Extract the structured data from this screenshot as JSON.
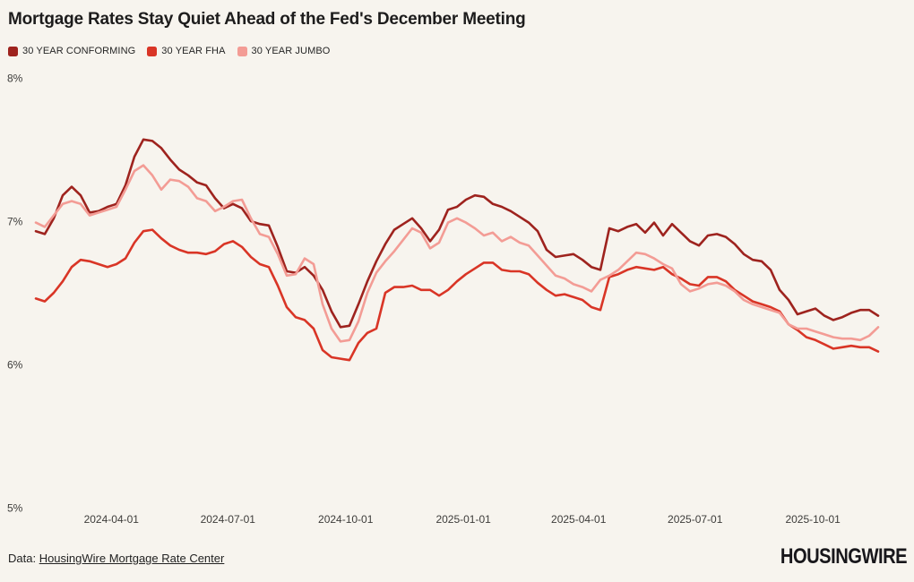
{
  "chart": {
    "title": "Mortgage Rates Stay Quiet Ahead of the Fed's December Meeting"
  },
  "footer": {
    "prefix": "Data: ",
    "link_text": "HousingWire Mortgage Rate Center"
  },
  "logo_text": "HOUSINGWIRE",
  "colors": {
    "background": "#f7f4ee",
    "conforming": "#9e231e",
    "fha": "#d93526",
    "jumbo": "#f39c95",
    "text": "#1d1c1c",
    "tick": "#3d3c3a"
  },
  "chart_data": {
    "type": "line",
    "title": "Mortgage Rates Stay Quiet Ahead of the Fed's December Meeting",
    "x_unit": "weekly dates",
    "start_date": "2024-02-02",
    "interval_days": 7,
    "x_tick_labels": [
      "2024-04-01",
      "2024-07-01",
      "2024-10-01",
      "2025-01-01",
      "2025-04-01",
      "2025-07-01",
      "2025-10-01"
    ],
    "y_ticks": [
      {
        "label": "8%",
        "value": 8
      },
      {
        "label": "7%",
        "value": 7
      },
      {
        "label": "6%",
        "value": 6
      },
      {
        "label": "5%",
        "value": 5
      }
    ],
    "ylim": [
      5,
      8
    ],
    "grid": false,
    "legend_position": "top-left",
    "series": [
      {
        "name": "30 YEAR CONFORMING",
        "color": "#9e231e",
        "values": [
          6.93,
          6.91,
          7.02,
          7.18,
          7.24,
          7.18,
          7.06,
          7.07,
          7.1,
          7.12,
          7.25,
          7.45,
          7.57,
          7.56,
          7.51,
          7.43,
          7.36,
          7.32,
          7.27,
          7.25,
          7.16,
          7.09,
          7.12,
          7.09,
          7.0,
          6.98,
          6.97,
          6.82,
          6.65,
          6.64,
          6.68,
          6.62,
          6.52,
          6.37,
          6.26,
          6.27,
          6.42,
          6.58,
          6.72,
          6.84,
          6.94,
          6.98,
          7.02,
          6.95,
          6.86,
          6.94,
          7.08,
          7.1,
          7.15,
          7.18,
          7.17,
          7.12,
          7.1,
          7.07,
          7.03,
          6.99,
          6.93,
          6.8,
          6.75,
          6.76,
          6.77,
          6.73,
          6.68,
          6.66,
          6.95,
          6.93,
          6.96,
          6.98,
          6.92,
          6.99,
          6.9,
          6.98,
          6.92,
          6.86,
          6.83,
          6.9,
          6.91,
          6.89,
          6.84,
          6.77,
          6.73,
          6.72,
          6.66,
          6.52,
          6.45,
          6.35,
          6.37,
          6.39,
          6.34,
          6.31,
          6.33,
          6.36,
          6.38,
          6.38,
          6.34
        ]
      },
      {
        "name": "30 YEAR FHA",
        "color": "#d93526",
        "values": [
          6.46,
          6.44,
          6.5,
          6.58,
          6.68,
          6.73,
          6.72,
          6.7,
          6.68,
          6.7,
          6.74,
          6.85,
          6.93,
          6.94,
          6.88,
          6.83,
          6.8,
          6.78,
          6.78,
          6.77,
          6.79,
          6.84,
          6.86,
          6.82,
          6.75,
          6.7,
          6.68,
          6.55,
          6.4,
          6.33,
          6.31,
          6.25,
          6.1,
          6.05,
          6.04,
          6.03,
          6.15,
          6.22,
          6.25,
          6.5,
          6.54,
          6.54,
          6.55,
          6.52,
          6.52,
          6.48,
          6.52,
          6.58,
          6.63,
          6.67,
          6.71,
          6.71,
          6.66,
          6.65,
          6.65,
          6.63,
          6.57,
          6.52,
          6.48,
          6.49,
          6.47,
          6.45,
          6.4,
          6.38,
          6.61,
          6.63,
          6.66,
          6.68,
          6.67,
          6.66,
          6.68,
          6.63,
          6.6,
          6.56,
          6.55,
          6.61,
          6.61,
          6.58,
          6.52,
          6.48,
          6.44,
          6.42,
          6.4,
          6.37,
          6.28,
          6.24,
          6.19,
          6.17,
          6.14,
          6.11,
          6.12,
          6.13,
          6.12,
          6.12,
          6.09
        ]
      },
      {
        "name": "30 YEAR JUMBO",
        "color": "#f39c95",
        "values": [
          6.99,
          6.96,
          7.04,
          7.12,
          7.14,
          7.12,
          7.04,
          7.06,
          7.08,
          7.1,
          7.22,
          7.35,
          7.39,
          7.32,
          7.22,
          7.29,
          7.28,
          7.24,
          7.16,
          7.14,
          7.07,
          7.1,
          7.14,
          7.15,
          7.02,
          6.91,
          6.89,
          6.77,
          6.62,
          6.63,
          6.74,
          6.7,
          6.42,
          6.25,
          6.16,
          6.17,
          6.3,
          6.5,
          6.64,
          6.72,
          6.79,
          6.87,
          6.95,
          6.92,
          6.81,
          6.85,
          6.99,
          7.02,
          6.99,
          6.95,
          6.9,
          6.92,
          6.86,
          6.89,
          6.85,
          6.83,
          6.76,
          6.69,
          6.62,
          6.6,
          6.56,
          6.54,
          6.51,
          6.59,
          6.62,
          6.66,
          6.72,
          6.78,
          6.77,
          6.74,
          6.7,
          6.67,
          6.56,
          6.51,
          6.53,
          6.56,
          6.57,
          6.55,
          6.51,
          6.45,
          6.42,
          6.4,
          6.38,
          6.36,
          6.28,
          6.25,
          6.25,
          6.23,
          6.21,
          6.19,
          6.18,
          6.18,
          6.17,
          6.2,
          6.26
        ]
      }
    ]
  }
}
